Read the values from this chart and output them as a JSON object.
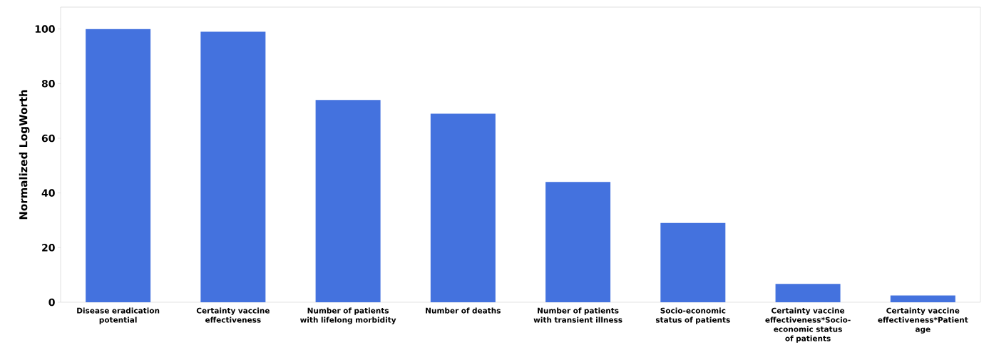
{
  "chart_data": {
    "type": "bar",
    "ylabel": "Normalized LogWorth",
    "categories": [
      "Disease eradication potential",
      "Certainty vaccine effectiveness",
      "Number of patients with lifelong morbidity",
      "Number of deaths",
      "Number of patients with transient illness",
      "Socio-economic status of patients",
      "Certainty vaccine effectiveness*Socio-economic status of patients",
      "Certainty vaccine effectiveness*Patient age"
    ],
    "values": [
      100,
      99,
      74,
      69,
      44,
      29,
      6.7,
      2.5
    ],
    "color": "#4472de",
    "ylim": [
      0,
      108
    ],
    "yticks": [
      0,
      20,
      40,
      60,
      80,
      100
    ],
    "grid": false
  }
}
